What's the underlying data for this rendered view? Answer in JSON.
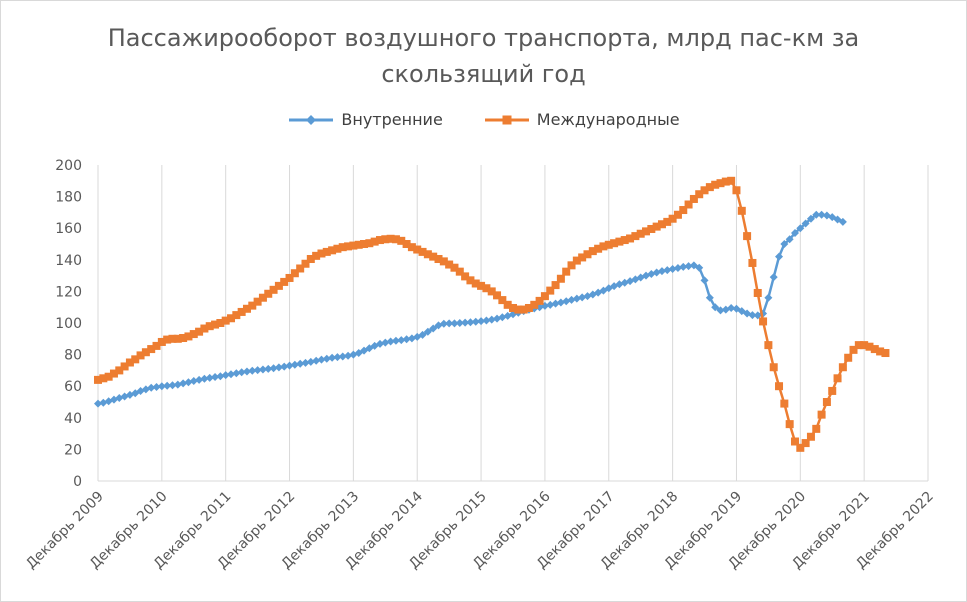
{
  "title_line1": "Пассажирооборот воздушного транспорта, млрд пас-км за",
  "title_line2": "скользящий год",
  "chart_data": {
    "type": "line",
    "title": "Пассажирооборот воздушного транспорта, млрд пас-км за скользящий год",
    "xlabel": "",
    "ylabel": "",
    "ylim": [
      0,
      200
    ],
    "yticks": [
      0,
      20,
      40,
      60,
      80,
      100,
      120,
      140,
      160,
      180,
      200
    ],
    "xticks": [
      "Декабрь 2009",
      "Декабрь 2010",
      "Декабрь 2011",
      "Декабрь 2012",
      "Декабрь 2013",
      "Декабрь 2014",
      "Декабрь 2015",
      "Декабрь 2016",
      "Декабрь 2017",
      "Декабрь 2018",
      "Декабрь 2019",
      "Декабрь 2020",
      "Декабрь 2021",
      "Декабрь 2022"
    ],
    "grid": "vertical",
    "legend_position": "top",
    "x_start": "2009-12",
    "x_step": "month",
    "series": [
      {
        "name": "Внутренние",
        "color": "#5b9bd5",
        "marker": "diamond",
        "values": [
          49,
          49.5,
          50.5,
          51.5,
          52.5,
          53.5,
          54.5,
          55.5,
          57,
          58,
          59,
          59.5,
          60,
          60.3,
          60.6,
          61,
          61.8,
          62.5,
          63.3,
          64,
          64.7,
          65.3,
          65.8,
          66.3,
          67,
          67.6,
          68.2,
          68.8,
          69.3,
          69.8,
          70.2,
          70.6,
          71,
          71.4,
          71.9,
          72.4,
          73,
          73.6,
          74.2,
          74.8,
          75.4,
          76.1,
          76.8,
          77.4,
          78,
          78.4,
          78.8,
          79.3,
          80,
          81,
          82.5,
          84,
          85.5,
          86.8,
          87.6,
          88.3,
          88.8,
          89.2,
          89.7,
          90.3,
          91.2,
          92.5,
          94.5,
          96.5,
          98.5,
          99.5,
          99.8,
          99.8,
          100,
          100.2,
          100.5,
          100.8,
          101.2,
          101.6,
          102.1,
          102.8,
          103.6,
          104.5,
          105.5,
          106.5,
          107.5,
          108.4,
          109.2,
          110,
          110.8,
          111.5,
          112.3,
          113,
          113.8,
          114.6,
          115.4,
          116.2,
          117,
          118,
          119.2,
          120.5,
          122,
          123.3,
          124.5,
          125.5,
          126.5,
          127.6,
          128.8,
          130,
          131,
          132,
          132.8,
          133.5,
          134.2,
          134.8,
          135.5,
          136,
          136.5,
          135,
          127,
          116,
          110,
          108,
          108.5,
          109.5,
          109,
          107.5,
          106,
          105,
          104.8,
          106,
          116,
          129,
          142,
          150,
          153,
          157,
          160,
          163,
          166,
          168.5,
          168.5,
          168,
          167,
          165.5,
          164
        ]
      },
      {
        "name": "Международные",
        "color": "#ed7d31",
        "marker": "square",
        "values": [
          64,
          65,
          66,
          68,
          70,
          72.5,
          75,
          77,
          79.5,
          81.5,
          83.5,
          85.5,
          88,
          89.5,
          90,
          90,
          90.5,
          91.5,
          93,
          94.5,
          96.5,
          98,
          99,
          100,
          101.5,
          103,
          105,
          107,
          109,
          111,
          113.5,
          116,
          118.5,
          121,
          123.5,
          126,
          128.5,
          131.5,
          134.5,
          137.5,
          140.5,
          142.5,
          144,
          145,
          146,
          147,
          148,
          148.5,
          149,
          149.5,
          150,
          150.5,
          151.5,
          152.5,
          153,
          153.3,
          153,
          152,
          150,
          148,
          146.5,
          145,
          143.5,
          142,
          140.5,
          139,
          137,
          135,
          132.5,
          129.5,
          127,
          125,
          123.5,
          122,
          120,
          117.5,
          114.5,
          111.5,
          109.5,
          108.5,
          108.5,
          109.5,
          111.5,
          114,
          117,
          120.5,
          124,
          128,
          132.5,
          136.5,
          139.5,
          141.5,
          143.5,
          145.5,
          147,
          148.5,
          149.5,
          150.5,
          151.5,
          152.5,
          153.5,
          155,
          156.5,
          158,
          159.5,
          161,
          162.5,
          164,
          166,
          168.5,
          171.5,
          175,
          178.5,
          181.5,
          184,
          186,
          187.5,
          188.5,
          189.5,
          190,
          184,
          171,
          155,
          138,
          119,
          101,
          86,
          72,
          60,
          49,
          36,
          25,
          21,
          24,
          28,
          33,
          42,
          50,
          57,
          65,
          72,
          78,
          83,
          86,
          86,
          85,
          83.5,
          82,
          81
        ]
      }
    ]
  }
}
